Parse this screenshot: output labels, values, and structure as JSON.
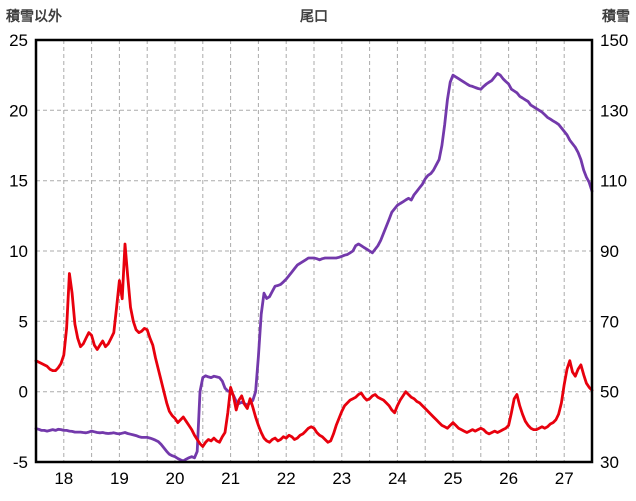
{
  "header": {
    "left_axis_title": "積雪以外",
    "chart_title": "尾口",
    "right_axis_title": "積雪"
  },
  "chart_data": {
    "type": "line",
    "title": "尾口",
    "left_axis": {
      "label": "積雪以外",
      "min": -5,
      "max": 25,
      "ticks": [
        -5,
        0,
        5,
        10,
        15,
        20,
        25
      ]
    },
    "right_axis": {
      "label": "積雪",
      "min": 30,
      "max": 150,
      "ticks": [
        30,
        50,
        70,
        90,
        110,
        130,
        150
      ]
    },
    "x_axis": {
      "min": 17.5,
      "max": 27.5,
      "tick_labels": [
        18,
        19,
        20,
        21,
        22,
        23,
        24,
        25,
        26,
        27
      ],
      "gridline_step": 0.5
    },
    "grid": {
      "color": "#ababab",
      "dash": "4 3"
    },
    "border_color": "#000000",
    "tick_label_color": "#000000",
    "series": [
      {
        "name": "snow-depth",
        "axis": "right",
        "color": "#7339ab",
        "x_start": 17.5,
        "x_step": 0.05,
        "values": [
          39.5,
          39.3,
          39.0,
          39.0,
          38.8,
          39.0,
          39.2,
          39.0,
          39.3,
          39.2,
          39.0,
          39.0,
          38.8,
          38.7,
          38.5,
          38.5,
          38.5,
          38.4,
          38.3,
          38.5,
          38.8,
          38.6,
          38.4,
          38.3,
          38.4,
          38.2,
          38.1,
          38.2,
          38.3,
          38.1,
          38.0,
          38.2,
          38.4,
          38.1,
          37.9,
          37.7,
          37.5,
          37.2,
          37.0,
          37.0,
          37.0,
          36.8,
          36.5,
          36.2,
          35.8,
          35.0,
          34.0,
          33.0,
          32.2,
          31.8,
          31.5,
          31.0,
          30.6,
          30.3,
          30.8,
          31.2,
          31.5,
          31.2,
          33.0,
          50.0,
          54.0,
          54.5,
          54.2,
          54.0,
          54.4,
          54.2,
          54.0,
          53.0,
          51.0,
          50.2,
          50.0,
          49.0,
          47.2,
          46.6,
          47.0,
          46.6,
          46.2,
          46.8,
          47.5,
          50.0,
          60.0,
          72.0,
          78.0,
          76.5,
          77.0,
          78.5,
          80.0,
          80.2,
          80.5,
          81.2,
          82.0,
          83.0,
          84.0,
          85.0,
          86.0,
          86.5,
          87.0,
          87.5,
          88.0,
          88.0,
          88.0,
          87.8,
          87.5,
          87.8,
          88.0,
          88.0,
          88.0,
          88.0,
          88.0,
          88.2,
          88.5,
          88.8,
          89.0,
          89.5,
          90.0,
          91.5,
          92.0,
          91.5,
          91.0,
          90.5,
          90.0,
          89.5,
          90.5,
          91.5,
          93.0,
          95.0,
          97.0,
          99.0,
          101.0,
          102.0,
          103.0,
          103.5,
          104.0,
          104.5,
          105.0,
          104.5,
          106.0,
          107.0,
          108.0,
          109.0,
          110.5,
          111.5,
          112.0,
          113.0,
          114.5,
          116.0,
          120.0,
          126.0,
          133.0,
          138.0,
          140.0,
          139.5,
          139.0,
          138.5,
          138.0,
          137.5,
          137.0,
          136.8,
          136.5,
          136.2,
          136.0,
          136.8,
          137.5,
          138.0,
          138.5,
          139.5,
          140.5,
          140.0,
          139.0,
          138.2,
          137.5,
          136.0,
          135.5,
          135.0,
          134.0,
          133.5,
          133.0,
          132.5,
          131.5,
          131.0,
          130.5,
          130.0,
          129.5,
          128.8,
          128.0,
          127.5,
          127.0,
          126.5,
          126.0,
          125.0,
          124.0,
          123.0,
          121.5,
          120.5,
          119.5,
          118.0,
          116.0,
          113.0,
          111.0,
          109.5,
          107.0
        ]
      },
      {
        "name": "non-snow",
        "axis": "left",
        "color": "#e8000d",
        "x_start": 17.5,
        "x_step": 0.05,
        "values": [
          2.2,
          2.1,
          2.0,
          1.9,
          1.8,
          1.6,
          1.5,
          1.5,
          1.7,
          2.0,
          2.6,
          4.5,
          8.4,
          7.0,
          4.8,
          3.8,
          3.2,
          3.4,
          3.8,
          4.2,
          4.0,
          3.3,
          3.0,
          3.3,
          3.6,
          3.2,
          3.4,
          3.8,
          4.2,
          6.0,
          7.9,
          6.6,
          10.5,
          8.2,
          6.0,
          5.0,
          4.4,
          4.2,
          4.3,
          4.5,
          4.4,
          3.8,
          3.3,
          2.4,
          1.6,
          0.8,
          0.0,
          -0.8,
          -1.4,
          -1.7,
          -1.9,
          -2.2,
          -2.0,
          -1.8,
          -2.1,
          -2.4,
          -2.7,
          -3.1,
          -3.4,
          -3.7,
          -3.9,
          -3.6,
          -3.4,
          -3.5,
          -3.3,
          -3.5,
          -3.6,
          -3.2,
          -2.9,
          -1.5,
          0.3,
          -0.3,
          -1.3,
          -0.6,
          -0.3,
          -0.9,
          -1.2,
          -0.5,
          -1.1,
          -1.8,
          -2.4,
          -2.9,
          -3.3,
          -3.5,
          -3.6,
          -3.4,
          -3.3,
          -3.5,
          -3.4,
          -3.2,
          -3.3,
          -3.1,
          -3.2,
          -3.4,
          -3.3,
          -3.1,
          -3.0,
          -2.8,
          -2.6,
          -2.5,
          -2.6,
          -2.9,
          -3.1,
          -3.2,
          -3.4,
          -3.6,
          -3.5,
          -3.0,
          -2.4,
          -1.9,
          -1.4,
          -1.0,
          -0.8,
          -0.6,
          -0.5,
          -0.4,
          -0.2,
          -0.1,
          -0.4,
          -0.6,
          -0.5,
          -0.3,
          -0.2,
          -0.4,
          -0.5,
          -0.6,
          -0.8,
          -1.0,
          -1.3,
          -1.5,
          -1.0,
          -0.6,
          -0.3,
          0.0,
          -0.2,
          -0.4,
          -0.5,
          -0.7,
          -0.8,
          -1.0,
          -1.2,
          -1.4,
          -1.6,
          -1.8,
          -2.0,
          -2.2,
          -2.4,
          -2.5,
          -2.6,
          -2.4,
          -2.2,
          -2.4,
          -2.6,
          -2.7,
          -2.8,
          -2.9,
          -2.8,
          -2.7,
          -2.8,
          -2.7,
          -2.6,
          -2.7,
          -2.9,
          -3.0,
          -2.9,
          -2.8,
          -2.9,
          -2.8,
          -2.7,
          -2.6,
          -2.4,
          -1.5,
          -0.5,
          -0.2,
          -1.0,
          -1.6,
          -2.1,
          -2.4,
          -2.6,
          -2.7,
          -2.7,
          -2.6,
          -2.5,
          -2.6,
          -2.5,
          -2.3,
          -2.2,
          -2.0,
          -1.6,
          -0.8,
          0.5,
          1.6,
          2.2,
          1.4,
          1.1,
          1.6,
          1.9,
          1.2,
          0.6,
          0.3,
          0.1
        ]
      }
    ]
  }
}
